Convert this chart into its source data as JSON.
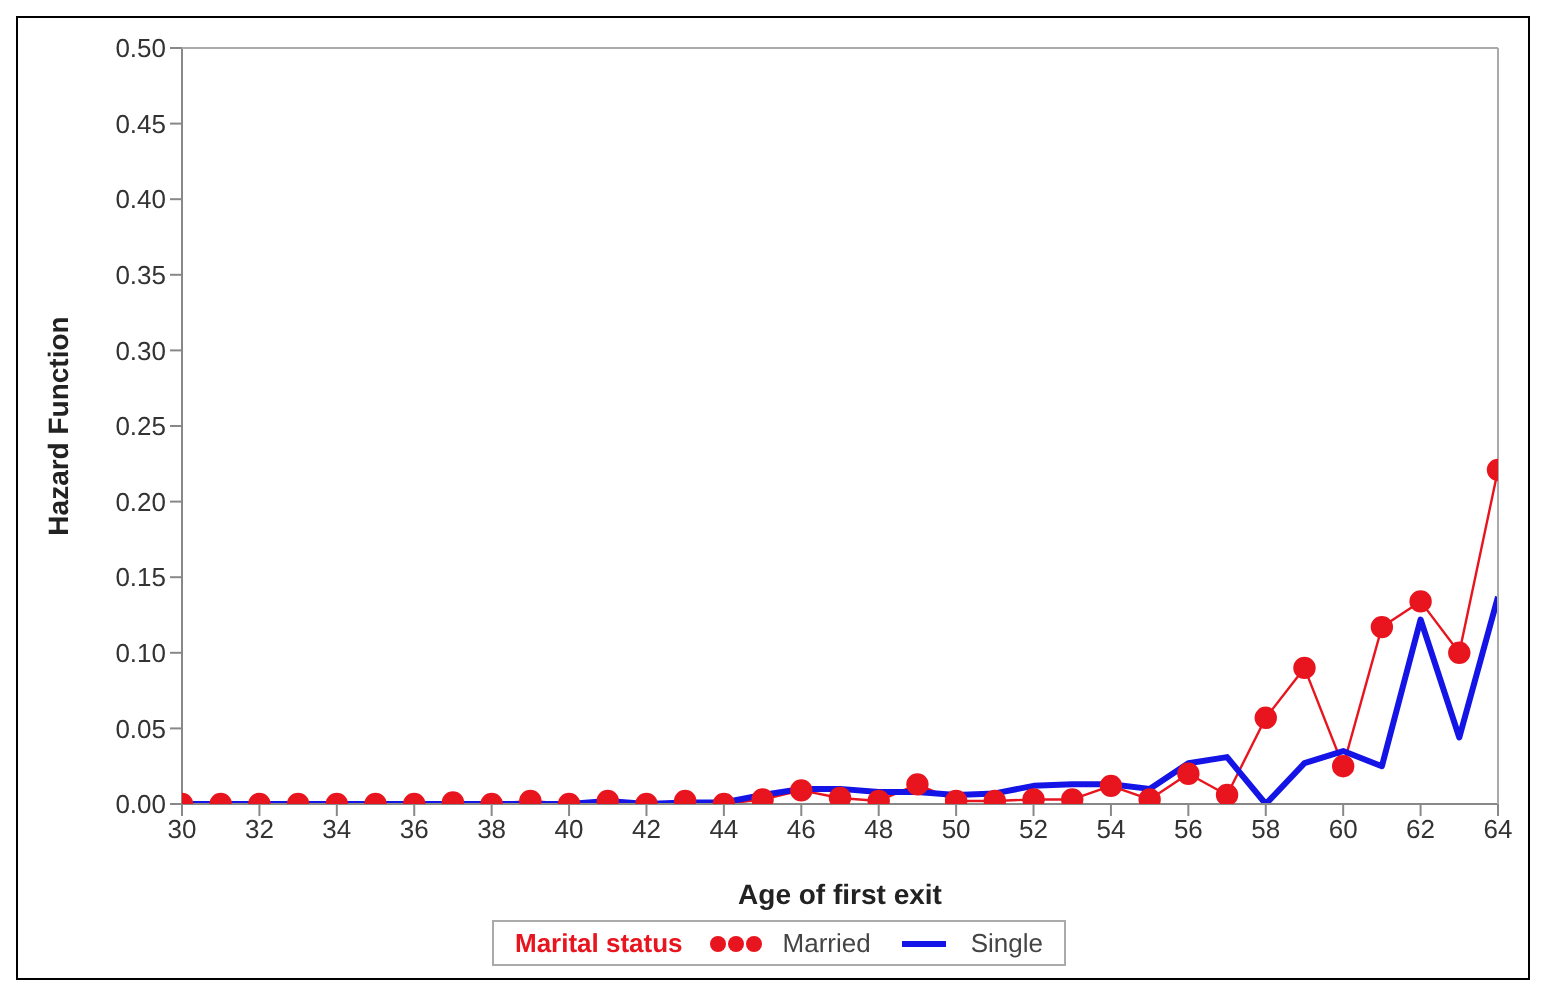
{
  "chart_data": {
    "type": "line",
    "xlabel": "Age of first exit",
    "ylabel": "Hazard Function",
    "legend_title": "Marital status",
    "legend": "bottom",
    "grid": false,
    "x": [
      30,
      31,
      32,
      33,
      34,
      35,
      36,
      37,
      38,
      39,
      40,
      41,
      42,
      43,
      44,
      45,
      46,
      47,
      48,
      49,
      50,
      51,
      52,
      53,
      54,
      55,
      56,
      57,
      58,
      59,
      60,
      61,
      62,
      63,
      64
    ],
    "xlim": [
      30,
      64
    ],
    "xticks": [
      30,
      32,
      34,
      36,
      38,
      40,
      42,
      44,
      46,
      48,
      50,
      52,
      54,
      56,
      58,
      60,
      62,
      64
    ],
    "ylim": [
      0,
      0.5
    ],
    "yticks": [
      {
        "value": 0,
        "label": "0.00"
      },
      {
        "value": 0.05,
        "label": "0.05"
      },
      {
        "value": 0.1,
        "label": "0.10"
      },
      {
        "value": 0.15,
        "label": "0.15"
      },
      {
        "value": 0.2,
        "label": "0.20"
      },
      {
        "value": 0.25,
        "label": "0.25"
      },
      {
        "value": 0.3,
        "label": "0.30"
      },
      {
        "value": 0.35,
        "label": "0.35"
      },
      {
        "value": 0.4,
        "label": "0.40"
      },
      {
        "value": 0.45,
        "label": "0.45"
      },
      {
        "value": 0.5,
        "label": "0.50"
      }
    ],
    "series": [
      {
        "name": "Married",
        "color": "#e8141e",
        "marker": "circle",
        "values": [
          0,
          0,
          0,
          0,
          0,
          0,
          0,
          0.001,
          0,
          0.002,
          0,
          0.002,
          0,
          0.002,
          0,
          0.003,
          0.009,
          0.004,
          0.002,
          0.013,
          0.002,
          0.002,
          0.003,
          0.003,
          0.012,
          0.003,
          0.02,
          0.006,
          0.057,
          0.09,
          0.025,
          0.117,
          0.134,
          0.1,
          0.221
        ]
      },
      {
        "name": "Single",
        "color": "#1414e6",
        "marker": "none",
        "values": [
          0,
          0,
          0,
          0,
          0,
          0,
          0,
          0,
          0,
          0,
          0,
          0.002,
          0,
          0.001,
          0.001,
          0.006,
          0.01,
          0.01,
          0.008,
          0.008,
          0.006,
          0.007,
          0.012,
          0.013,
          0.013,
          0.01,
          0.027,
          0.031,
          0,
          0.027,
          0.035,
          0.025,
          0.122,
          0.044,
          0.137
        ]
      }
    ]
  }
}
